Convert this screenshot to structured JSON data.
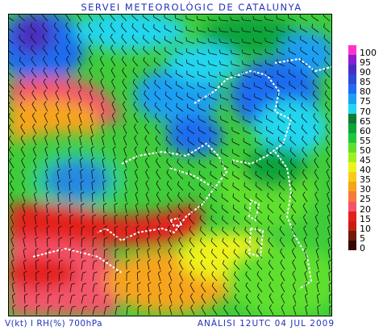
{
  "header": {
    "title": "SERVEI METEOROLÒGIC DE CATALUNYA"
  },
  "footer": {
    "left_label": "V(kt) I RH(%) 700hPa",
    "right_label": "ANÀLISI 12UTC 04 JUL 2009"
  },
  "colors": {
    "text_blue": "#2233bb",
    "map_frame": "#000000",
    "coastline": "#ffffff",
    "wind_barb": "#101010"
  },
  "legend": {
    "items": [
      {
        "label": "100",
        "color": "#ff33cc"
      },
      {
        "label": "95",
        "color": "#8a1fd0"
      },
      {
        "label": "90",
        "color": "#4a2ec0"
      },
      {
        "label": "85",
        "color": "#2e49d6"
      },
      {
        "label": "80",
        "color": "#1f6cf0"
      },
      {
        "label": "75",
        "color": "#1c9ff2"
      },
      {
        "label": "70",
        "color": "#22d6ee"
      },
      {
        "label": "65",
        "color": "#0d7a34"
      },
      {
        "label": "60",
        "color": "#0fa43a"
      },
      {
        "label": "55",
        "color": "#20c83c"
      },
      {
        "label": "50",
        "color": "#5fe02e"
      },
      {
        "label": "45",
        "color": "#9ff020"
      },
      {
        "label": "40",
        "color": "#eef21c"
      },
      {
        "label": "35",
        "color": "#f6cc18"
      },
      {
        "label": "30",
        "color": "#f6a41c"
      },
      {
        "label": "25",
        "color": "#f47a38"
      },
      {
        "label": "20",
        "color": "#f4546a"
      },
      {
        "label": "15",
        "color": "#e4201e"
      },
      {
        "label": "10",
        "color": "#c81e12"
      },
      {
        "label": "5",
        "color": "#6e1c0e"
      },
      {
        "label": "0",
        "color": "#3a0604"
      }
    ]
  }
}
